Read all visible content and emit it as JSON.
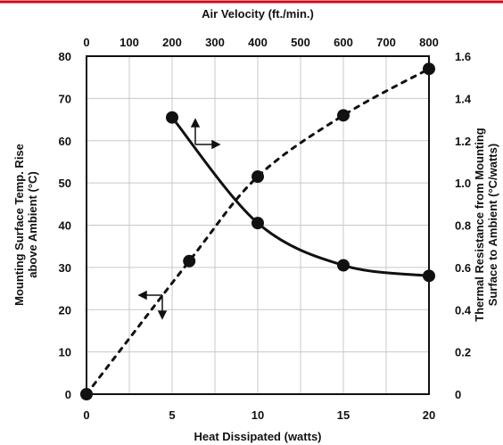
{
  "colors": {
    "top_border": "#d0021b",
    "ink": "#111111",
    "grid": "#c8c8c8"
  },
  "chart_data": {
    "type": "line",
    "grid": true,
    "x_bottom": {
      "label": "Heat Dissipated (watts)",
      "range": [
        0,
        20
      ],
      "ticks": [
        0,
        5,
        10,
        15,
        20
      ]
    },
    "x_top": {
      "label": "Air Velocity (ft./min.)",
      "range": [
        0,
        800
      ],
      "ticks": [
        0,
        100,
        200,
        300,
        400,
        500,
        600,
        700,
        800
      ]
    },
    "y_left": {
      "label_line1": "Mounting Surface Temp. Rise",
      "label_line2": "above Ambient (°C)",
      "range": [
        0,
        80
      ],
      "ticks": [
        0,
        10,
        20,
        30,
        40,
        50,
        60,
        70,
        80
      ]
    },
    "y_right": {
      "label_line1": "Thermal Resistance from Mounting",
      "label_line2": "Surface to Ambient (°C/watts)",
      "range": [
        0,
        1.6
      ],
      "ticks": [
        "0",
        "0.2",
        "0.4",
        "0.6",
        "0.8",
        "1.0",
        "1.2",
        "1.4",
        "1.6"
      ]
    },
    "series": [
      {
        "style": "dashed",
        "x_axis": "bottom",
        "y_axis": "left",
        "points": [
          [
            0,
            0
          ],
          [
            6,
            31.5
          ],
          [
            10,
            51.5
          ],
          [
            15,
            66
          ],
          [
            20,
            77
          ]
        ]
      },
      {
        "style": "solid",
        "x_axis": "top",
        "y_axis": "right",
        "points": [
          [
            200,
            1.31
          ],
          [
            400,
            0.81
          ],
          [
            600,
            0.61
          ],
          [
            800,
            0.56
          ]
        ]
      }
    ]
  }
}
